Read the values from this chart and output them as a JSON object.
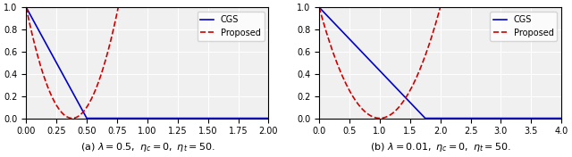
{
  "subplot_a": {
    "lambda_val": 0.5,
    "eta_c": 0,
    "eta_t": 50,
    "xlim": [
      0.0,
      2.0
    ],
    "ylim": [
      0.0,
      1.0
    ],
    "xticks": [
      0.0,
      0.25,
      0.5,
      0.75,
      1.0,
      1.25,
      1.5,
      1.75,
      2.0
    ],
    "yticks": [
      0.0,
      0.2,
      0.4,
      0.6,
      0.8,
      1.0
    ],
    "T_cgs": 0.5,
    "T_prop": 0.38,
    "xlabel": "(a) $\\lambda = 0.5,\\ \\eta_c = 0,\\ \\eta_t = 50.$"
  },
  "subplot_b": {
    "lambda_val": 0.01,
    "eta_c": 0,
    "eta_t": 50,
    "xlim": [
      0.0,
      4.0
    ],
    "ylim": [
      0.0,
      1.0
    ],
    "xticks": [
      0.0,
      0.5,
      1.0,
      1.5,
      2.0,
      2.5,
      3.0,
      3.5,
      4.0
    ],
    "yticks": [
      0.0,
      0.2,
      0.4,
      0.6,
      0.8,
      1.0
    ],
    "T_cgs": 1.75,
    "T_prop": 1.0,
    "xlabel": "(b) $\\lambda = 0.01,\\ \\eta_c = 0,\\ \\eta_t = 50.$"
  },
  "cgs_color": "#0000cc",
  "proposed_color": "#cc0000",
  "legend_labels": [
    "CGS",
    "Proposed"
  ],
  "background_color": "#f0f0f0",
  "figsize": [
    6.4,
    1.76
  ],
  "dpi": 100
}
